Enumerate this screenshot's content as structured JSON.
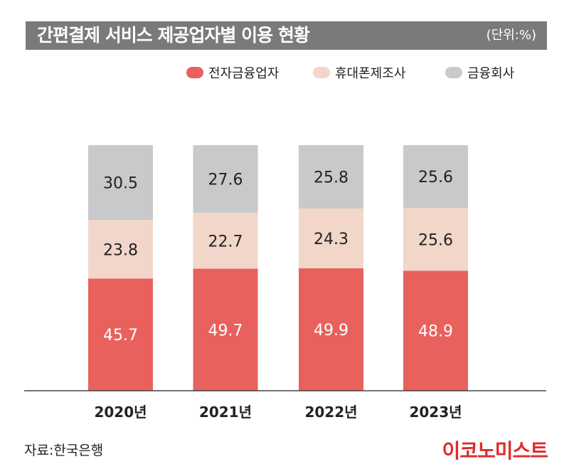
{
  "header": {
    "title": "간편결제 서비스 제공업자별 이용 현황",
    "unit": "(단위:%)"
  },
  "colors": {
    "전자금융업자": "#e8615d",
    "휴대폰제조사": "#f1d6c9",
    "금융회사": "#c8c9cb",
    "axis": "#444444"
  },
  "chart_data": {
    "type": "bar",
    "stacked": true,
    "categories": [
      "2020년",
      "2021년",
      "2022년",
      "2023년"
    ],
    "series": [
      {
        "name": "전자금융업자",
        "values": [
          45.7,
          49.7,
          49.9,
          48.9
        ]
      },
      {
        "name": "휴대폰제조사",
        "values": [
          23.8,
          22.7,
          24.3,
          25.6
        ]
      },
      {
        "name": "금융회사",
        "values": [
          30.5,
          27.6,
          25.8,
          25.6
        ]
      }
    ],
    "legend_position": "top-right",
    "grid": false
  },
  "footer": {
    "source": "자료:한국은행",
    "brand": "이코노미스트"
  }
}
